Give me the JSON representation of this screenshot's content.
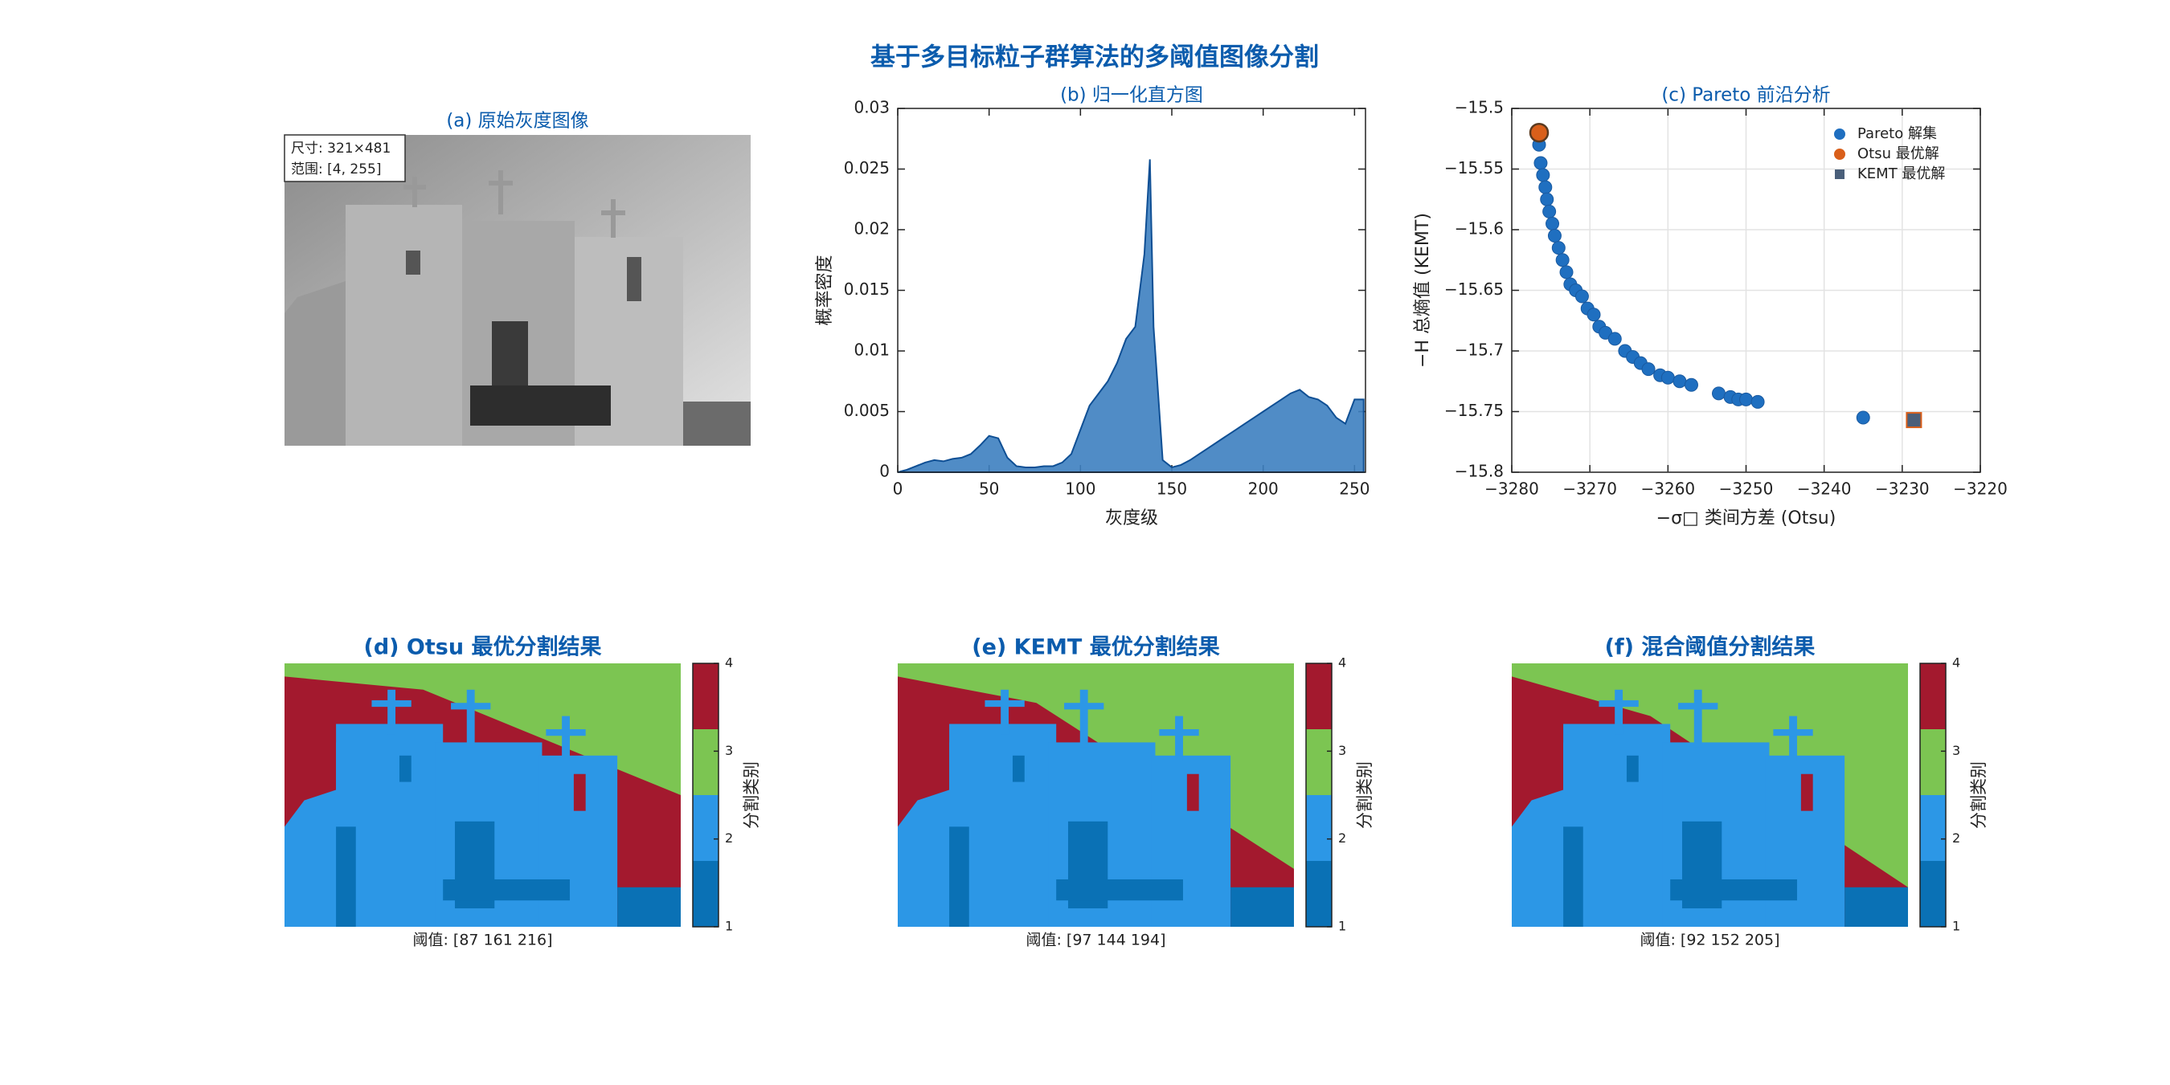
{
  "title": "基于多目标粒子群算法的多阈值图像分割",
  "chart_data": [
    {
      "type": "image",
      "title": "(a) 原始灰度图像",
      "annotations": [
        "尺寸: 321×481",
        "范围: [4, 255]"
      ]
    },
    {
      "type": "area",
      "title": "(b) 归一化直方图",
      "xlabel": "灰度级",
      "ylabel": "概率密度",
      "color": "#3d7fc0",
      "x": [
        0,
        5,
        10,
        15,
        20,
        25,
        30,
        35,
        40,
        45,
        50,
        55,
        60,
        65,
        70,
        75,
        80,
        85,
        90,
        95,
        100,
        105,
        110,
        115,
        120,
        125,
        130,
        135,
        138,
        140,
        145,
        150,
        155,
        160,
        165,
        170,
        175,
        180,
        185,
        190,
        195,
        200,
        205,
        210,
        215,
        220,
        225,
        230,
        235,
        240,
        245,
        250,
        255
      ],
      "values": [
        0,
        0.0002,
        0.0005,
        0.0008,
        0.001,
        0.0009,
        0.0011,
        0.0012,
        0.0015,
        0.0022,
        0.003,
        0.0028,
        0.0012,
        0.0005,
        0.0004,
        0.0004,
        0.0005,
        0.0005,
        0.0008,
        0.0015,
        0.0035,
        0.0055,
        0.0065,
        0.0075,
        0.009,
        0.011,
        0.012,
        0.018,
        0.0258,
        0.012,
        0.001,
        0.0004,
        0.0006,
        0.001,
        0.0015,
        0.002,
        0.0025,
        0.003,
        0.0035,
        0.004,
        0.0045,
        0.005,
        0.0055,
        0.006,
        0.0065,
        0.0068,
        0.0062,
        0.006,
        0.0055,
        0.0045,
        0.004,
        0.006,
        0.006
      ],
      "xlim": [
        0,
        256
      ],
      "xticks": [
        0,
        50,
        100,
        150,
        200,
        250
      ],
      "ylim": [
        0,
        0.03
      ],
      "yticks": [
        0,
        0.005,
        0.01,
        0.015,
        0.02,
        0.025,
        0.03
      ]
    },
    {
      "type": "scatter",
      "title": "(c) Pareto 前沿分析",
      "xlabel": "−σ□ 类间方差 (Otsu)",
      "ylabel": "−H 总熵值 (KEMT)",
      "grid": true,
      "legend": "upper right",
      "series": [
        {
          "name": "Pareto 解集",
          "color": "#1f6fc0",
          "marker": "circle",
          "x": [
            -3276.5,
            -3276.3,
            -3276,
            -3275.7,
            -3275.5,
            -3275.2,
            -3274.8,
            -3274.5,
            -3274,
            -3273.5,
            -3273,
            -3272.5,
            -3271.8,
            -3271,
            -3270.3,
            -3269.5,
            -3268.8,
            -3268,
            -3266.8,
            -3265.5,
            -3264.5,
            -3263.5,
            -3262.5,
            -3261,
            -3260,
            -3258.5,
            -3257,
            -3253.5,
            -3252,
            -3251,
            -3250,
            -3248.5,
            -3235
          ],
          "values": [
            -15.53,
            -15.545,
            -15.555,
            -15.565,
            -15.575,
            -15.585,
            -15.595,
            -15.605,
            -15.615,
            -15.625,
            -15.635,
            -15.645,
            -15.65,
            -15.655,
            -15.665,
            -15.67,
            -15.68,
            -15.685,
            -15.69,
            -15.7,
            -15.705,
            -15.71,
            -15.715,
            -15.72,
            -15.722,
            -15.725,
            -15.728,
            -15.735,
            -15.738,
            -15.74,
            -15.74,
            -15.742,
            -15.755
          ]
        },
        {
          "name": "Otsu 最优解",
          "color": "#d95f1a",
          "marker": "circle",
          "x": [
            -3276.5
          ],
          "values": [
            -15.52
          ]
        },
        {
          "name": "KEMT 最优解",
          "color": "#4a5f7a",
          "marker": "square",
          "x": [
            -3228.5
          ],
          "values": [
            -15.757
          ]
        }
      ],
      "xlim": [
        -3280,
        -3220
      ],
      "xticks": [
        {
          "value": -3280,
          "label": "−3280"
        },
        {
          "value": -3270,
          "label": "−3270"
        },
        {
          "value": -3260,
          "label": "−3260"
        },
        {
          "value": -3250,
          "label": "−3250"
        },
        {
          "value": -3240,
          "label": "−3240"
        },
        {
          "value": -3230,
          "label": "−3230"
        },
        {
          "value": -3220,
          "label": "−3220"
        }
      ],
      "ylim": [
        -15.8,
        -15.5
      ],
      "yticks": [
        {
          "value": -15.5,
          "label": "−15.5"
        },
        {
          "value": -15.55,
          "label": "−15.55"
        },
        {
          "value": -15.6,
          "label": "−15.6"
        },
        {
          "value": -15.65,
          "label": "−15.65"
        },
        {
          "value": -15.7,
          "label": "−15.7"
        },
        {
          "value": -15.75,
          "label": "−15.75"
        },
        {
          "value": -15.8,
          "label": "−15.8"
        }
      ]
    },
    {
      "type": "segmentation",
      "title": "(d) Otsu 最优分割结果",
      "caption": "阈值: [87 161 216]",
      "colors": [
        "#0a71b5",
        "#2c97e6",
        "#7cc552",
        "#a3192e"
      ],
      "clim": [
        1,
        4
      ],
      "cticks": [
        1,
        2,
        3,
        4
      ],
      "clabel": "分割类别"
    },
    {
      "type": "segmentation",
      "title": "(e) KEMT 最优分割结果",
      "caption": "阈值: [97 144 194]",
      "colors": [
        "#0a71b5",
        "#2c97e6",
        "#7cc552",
        "#a3192e"
      ],
      "clim": [
        1,
        4
      ],
      "cticks": [
        1,
        2,
        3,
        4
      ],
      "clabel": "分割类别"
    },
    {
      "type": "segmentation",
      "title": "(f) 混合阈值分割结果",
      "caption": "阈值: [92 152 205]",
      "colors": [
        "#0a71b5",
        "#2c97e6",
        "#7cc552",
        "#a3192e"
      ],
      "clim": [
        1,
        4
      ],
      "cticks": [
        1,
        2,
        3,
        4
      ],
      "clabel": "分割类别"
    }
  ]
}
